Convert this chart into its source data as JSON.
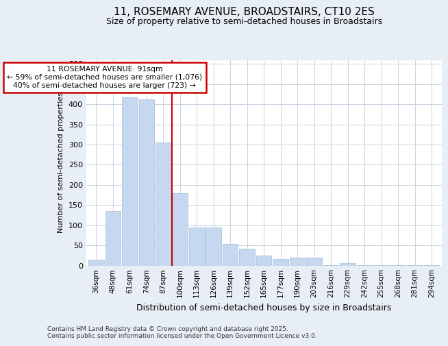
{
  "title1": "11, ROSEMARY AVENUE, BROADSTAIRS, CT10 2ES",
  "title2": "Size of property relative to semi-detached houses in Broadstairs",
  "xlabel": "Distribution of semi-detached houses by size in Broadstairs",
  "ylabel": "Number of semi-detached properties",
  "categories": [
    "36sqm",
    "48sqm",
    "61sqm",
    "74sqm",
    "87sqm",
    "100sqm",
    "113sqm",
    "126sqm",
    "139sqm",
    "152sqm",
    "165sqm",
    "177sqm",
    "190sqm",
    "203sqm",
    "216sqm",
    "229sqm",
    "242sqm",
    "255sqm",
    "268sqm",
    "281sqm",
    "294sqm"
  ],
  "values": [
    15,
    135,
    418,
    412,
    305,
    180,
    95,
    95,
    53,
    42,
    25,
    16,
    20,
    20,
    1,
    6,
    1,
    1,
    1,
    1,
    1
  ],
  "bar_color": "#c5d8f0",
  "bar_edge_color": "#a0bcd8",
  "vline_color": "#cc0000",
  "vline_x": 4.5,
  "annotation_title": "11 ROSEMARY AVENUE: 91sqm",
  "annotation_line1": "← 59% of semi-detached houses are smaller (1,076)",
  "annotation_line2": "40% of semi-detached houses are larger (723) →",
  "ylim": [
    0,
    510
  ],
  "yticks": [
    0,
    50,
    100,
    150,
    200,
    250,
    300,
    350,
    400,
    450,
    500
  ],
  "footer1": "Contains HM Land Registry data © Crown copyright and database right 2025.",
  "footer2": "Contains public sector information licensed under the Open Government Licence v3.0.",
  "bg_color": "#e8eef5",
  "plot_bg_color": "#ffffff",
  "grid_color": "#c8d4e0",
  "title1_fontsize": 11,
  "title2_fontsize": 9
}
